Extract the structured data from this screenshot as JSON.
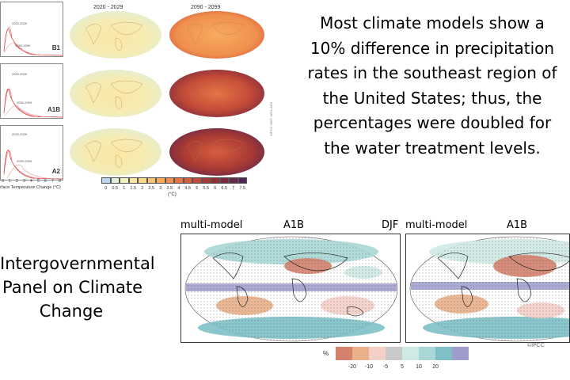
{
  "top_figure": {
    "line_panels": [
      {
        "scenario": "B1",
        "period_a": "2020-2029",
        "period_b": "2090-2099"
      },
      {
        "scenario": "A1B",
        "period_a": "2020-2029",
        "period_b": "2090-2099"
      },
      {
        "scenario": "A2",
        "period_a": "2020-2029",
        "period_b": "2090-2099"
      }
    ],
    "x_ticks": [
      "0",
      "1",
      "2",
      "3",
      "4",
      "5",
      "6",
      "7",
      "8"
    ],
    "x_label": "rface Temperature Change (°C)",
    "column_titles": [
      "2020 - 2029",
      "2090 - 2099"
    ],
    "credit": "©IPCC 2007: WG1-AR4",
    "scale_ticks": [
      "0",
      "0.5",
      "1",
      "1.5",
      "2",
      "2.5",
      "3",
      "3.5",
      "4",
      "4.5",
      "5",
      "5.5",
      "6",
      "6.5",
      "7",
      "7.5"
    ],
    "scale_unit": "(°C)",
    "scale_colors": [
      "#b7d7ee",
      "#e2eed8",
      "#f3f0c0",
      "#fbe7a5",
      "#fbd98a",
      "#f9c474",
      "#f6ab5f",
      "#f0904e",
      "#e57546",
      "#d65d3f",
      "#c24a38",
      "#a93a33",
      "#902f33",
      "#7a2a3d",
      "#65284a",
      "#4f2456"
    ]
  },
  "caption": {
    "lines": [
      "Most climate models show a",
      "10% difference in precipitation",
      "rates in the southeast region of",
      "the United States; thus, the",
      "percentages were doubled for",
      "the water treatment levels."
    ]
  },
  "org": {
    "lines": [
      "Intergovernmental",
      "Panel on Climate",
      "Change"
    ]
  },
  "bottom_figure": {
    "left": {
      "model": "multi-model",
      "scenario": "A1B",
      "season": "DJF"
    },
    "right": {
      "model": "multi-model",
      "scenario": "A1B"
    },
    "credit": "©IPCC",
    "scale_unit": "%",
    "scale_ticks": [
      "-20",
      "-10",
      "-5",
      "5",
      "10",
      "20"
    ],
    "scale_colors": [
      "#d4826e",
      "#e9b08a",
      "#f3cfc6",
      "#c9c9c9",
      "#cfe9e4",
      "#a8d7d6",
      "#7fc0c8",
      "#9d9ccc"
    ]
  }
}
